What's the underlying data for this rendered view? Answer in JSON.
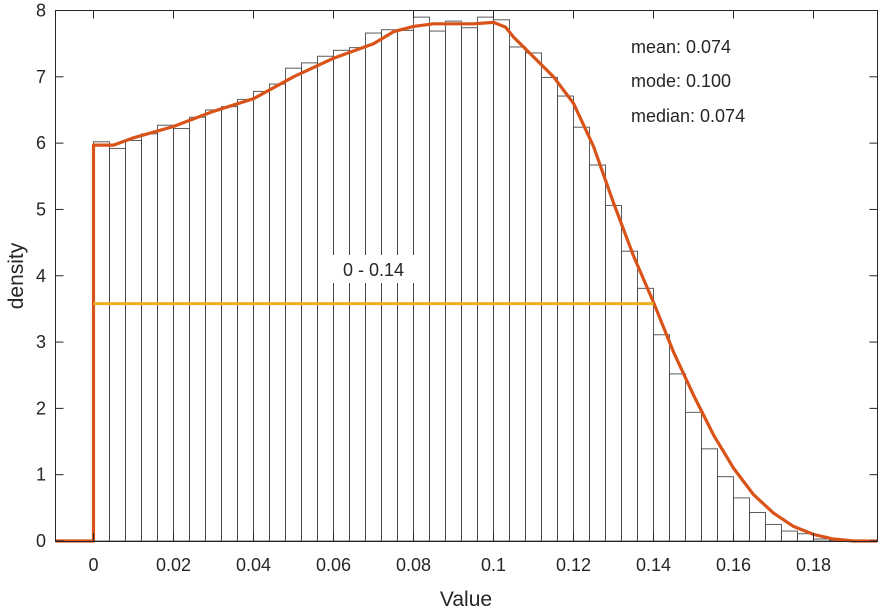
{
  "chart_data": {
    "type": "bar",
    "title": "",
    "xlabel": "Value",
    "ylabel": "density",
    "xlim": [
      -0.0095,
      0.196
    ],
    "ylim": [
      0,
      8
    ],
    "grid": false,
    "xticks": [
      "0",
      "0.02",
      "0.04",
      "0.06",
      "0.08",
      "0.1",
      "0.12",
      "0.14",
      "0.16",
      "0.18"
    ],
    "xtick_values": [
      0,
      0.02,
      0.04,
      0.06,
      0.08,
      0.1,
      0.12,
      0.14,
      0.16,
      0.18
    ],
    "yticks": [
      "0",
      "1",
      "2",
      "3",
      "4",
      "5",
      "6",
      "7",
      "8"
    ],
    "ytick_values": [
      0,
      1,
      2,
      3,
      4,
      5,
      6,
      7,
      8
    ],
    "bin_start": 0,
    "bin_width": 0.004,
    "histogram": [
      6.02,
      5.92,
      6.04,
      6.14,
      6.27,
      6.22,
      6.39,
      6.5,
      6.55,
      6.66,
      6.78,
      6.89,
      7.13,
      7.21,
      7.31,
      7.4,
      7.44,
      7.66,
      7.71,
      7.7,
      7.9,
      7.69,
      7.84,
      7.74,
      7.9,
      7.86,
      7.45,
      7.36,
      6.99,
      6.71,
      6.24,
      5.67,
      5.06,
      4.37,
      3.81,
      3.11,
      2.52,
      1.94,
      1.39,
      0.97,
      0.65,
      0.43,
      0.25,
      0.15,
      0.11,
      0.03,
      0.01
    ],
    "density_curve": {
      "x": [
        -0.0095,
        0,
        0,
        0.005,
        0.01,
        0.02,
        0.03,
        0.04,
        0.05,
        0.06,
        0.07,
        0.075,
        0.08,
        0.085,
        0.09,
        0.095,
        0.1,
        0.103,
        0.105,
        0.11,
        0.115,
        0.12,
        0.125,
        0.13,
        0.135,
        0.14,
        0.145,
        0.15,
        0.155,
        0.16,
        0.165,
        0.17,
        0.175,
        0.18,
        0.185,
        0.19,
        0.196
      ],
      "y": [
        0,
        0,
        5.97,
        5.97,
        6.08,
        6.25,
        6.48,
        6.67,
        7.0,
        7.28,
        7.5,
        7.68,
        7.76,
        7.8,
        7.8,
        7.8,
        7.82,
        7.75,
        7.6,
        7.3,
        7.0,
        6.6,
        5.95,
        5.1,
        4.3,
        3.6,
        2.85,
        2.2,
        1.6,
        1.1,
        0.7,
        0.42,
        0.22,
        0.1,
        0.03,
        0.0,
        0.0
      ],
      "color": "#D95319"
    },
    "range_line": {
      "x": [
        0,
        0.14
      ],
      "y": 3.58,
      "label": "0 - 0.14",
      "color": "#EDB120"
    },
    "annotations": {
      "mean": "mean: 0.074",
      "mode": "mode: 0.100",
      "median": "median: 0.074"
    }
  }
}
